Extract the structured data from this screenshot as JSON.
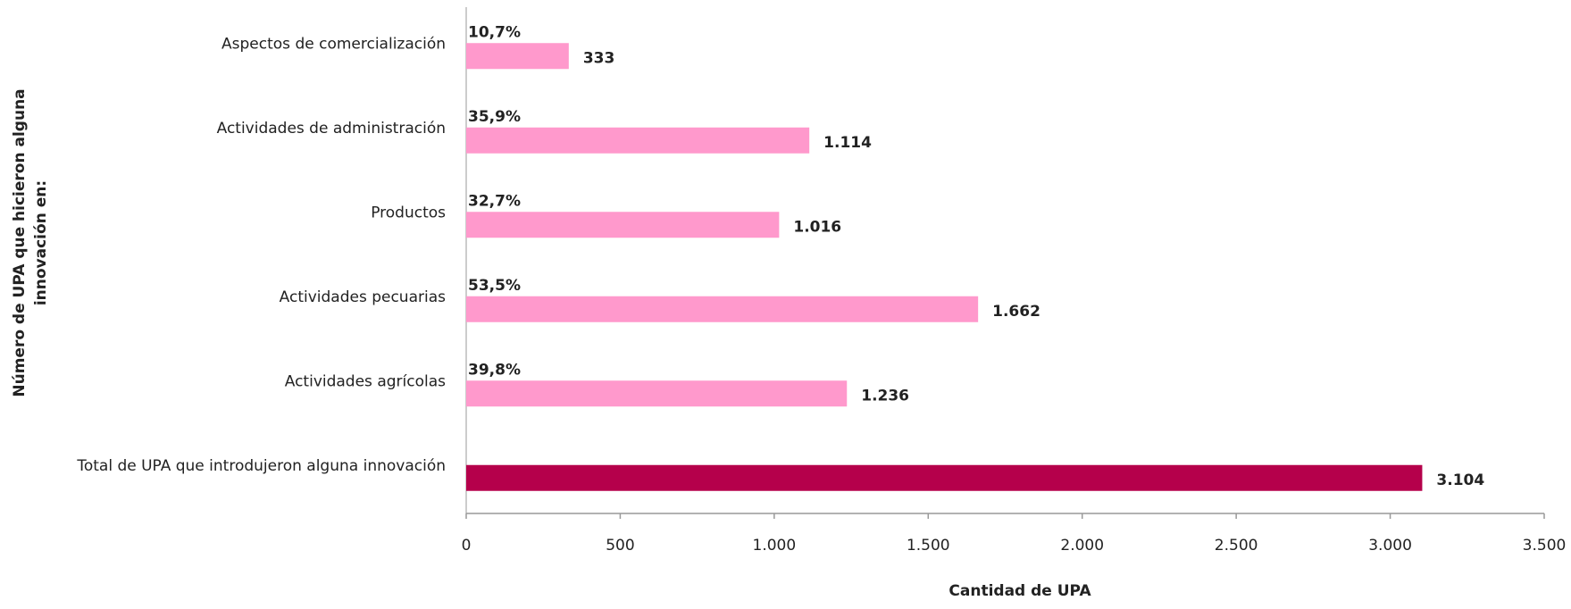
{
  "chart_data": {
    "type": "hbar",
    "x_label": "Cantidad de UPA",
    "y_label": [
      "Número de UPA que hicieron alguna",
      "innovación en:"
    ],
    "categories": [
      "Aspectos de comercialización",
      "Actividades de administración",
      "Productos",
      "Actividades pecuarias",
      "Actividades agrícolas",
      "Total de UPA que introdujeron alguna innovación"
    ],
    "values": [
      333,
      1114,
      1016,
      1662,
      1236,
      3104
    ],
    "value_labels": [
      "333",
      "1.114",
      "1.016",
      "1.662",
      "1.236",
      "3.104"
    ],
    "shares": [
      10.7,
      35.9,
      32.7,
      53.5,
      39.8,
      null
    ],
    "share_labels": [
      "10,7%",
      "35,9%",
      "32,7%",
      "53,5%",
      "39,8%",
      null
    ],
    "colors": [
      "#ff99cc",
      "#ff99cc",
      "#ff99cc",
      "#ff99cc",
      "#ff99cc",
      "#b5004b"
    ],
    "xlim": [
      0,
      3500
    ],
    "xticks": [
      0,
      500,
      {
        "value": 1000,
        "label": "1.000"
      },
      {
        "value": 1500,
        "label": "1.500"
      },
      {
        "value": 2000,
        "label": "2.000"
      },
      {
        "value": 2500,
        "label": "2.500"
      },
      {
        "value": 3000,
        "label": "3.000"
      },
      {
        "value": 3500,
        "label": "3.500"
      }
    ],
    "grid": false
  }
}
